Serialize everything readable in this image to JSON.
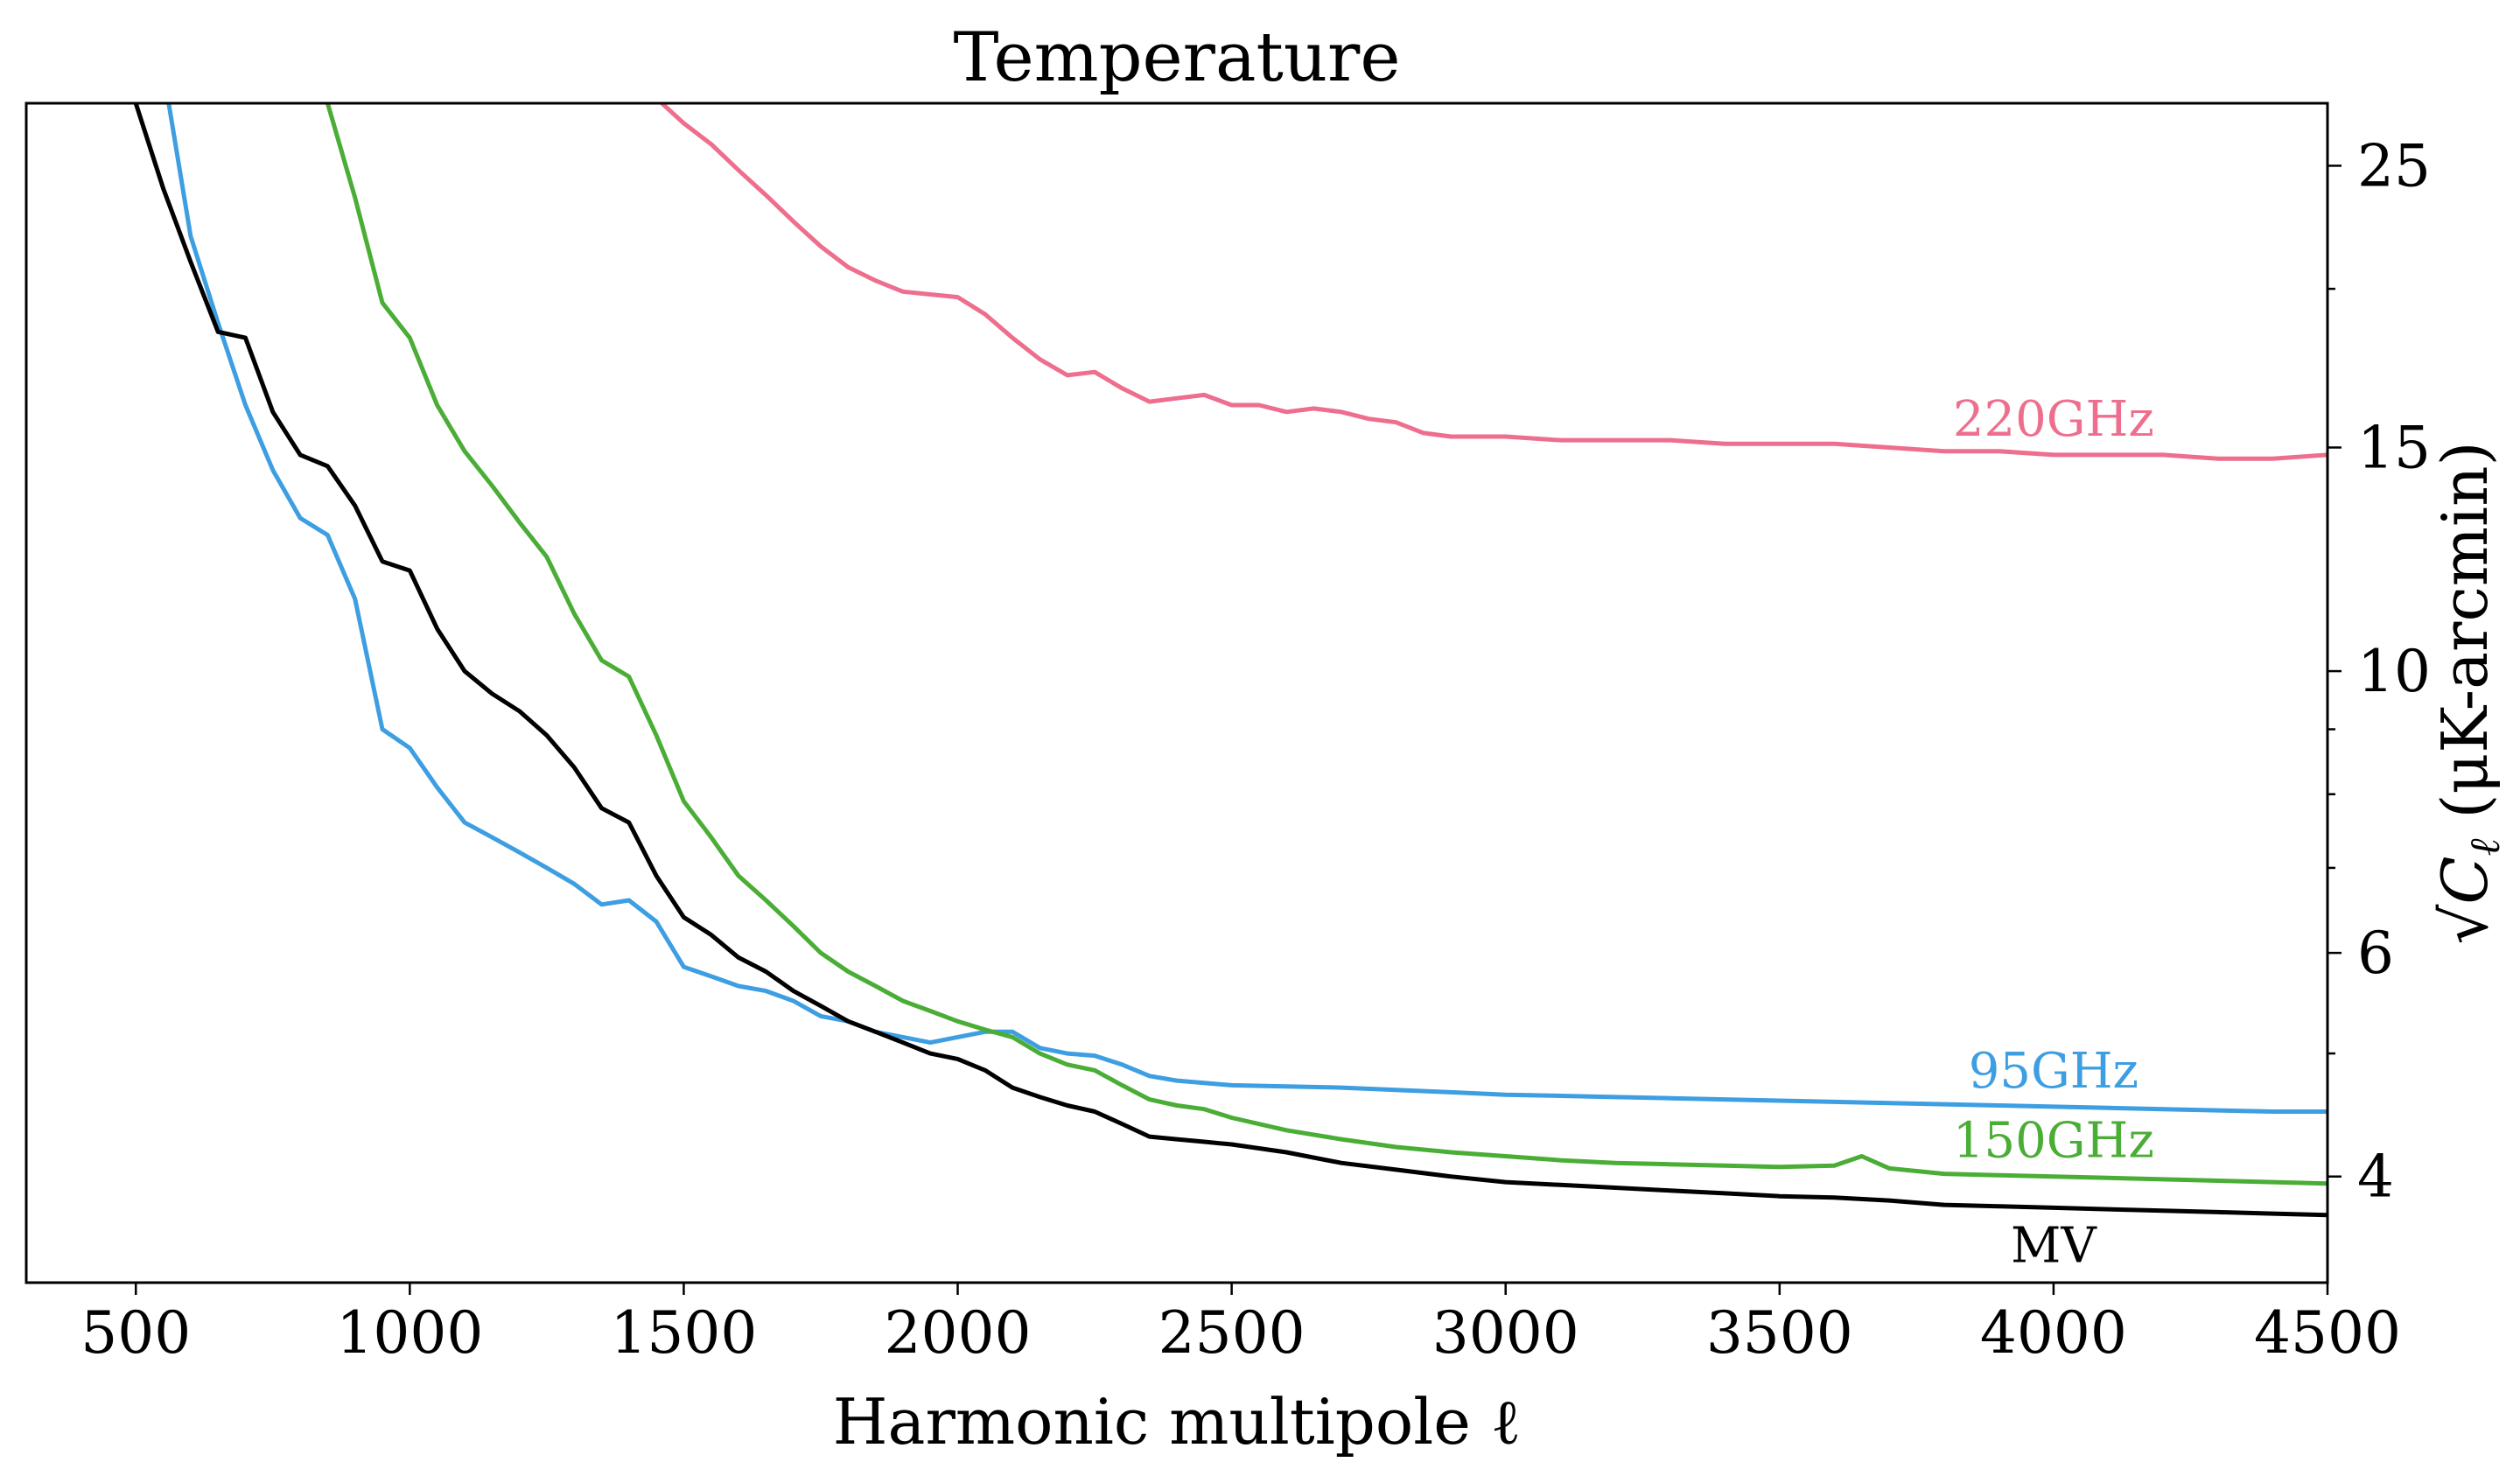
{
  "chart_data": {
    "type": "line",
    "title": "Temperature",
    "xlabel": "Harmonic multipole ℓ",
    "ylabel": "√C_ℓ (μK-arcmin)",
    "ylabel_parts": {
      "sqrt_symbol": "√",
      "base": "C",
      "subscript": "ℓ",
      "units": " (μK-arcmin)"
    },
    "xlim": [
      300,
      4500
    ],
    "ylim": [
      3.3,
      28.0
    ],
    "y_scale": "log",
    "y_axis_side": "right",
    "x_ticks": [
      500,
      1000,
      1500,
      2000,
      2500,
      3000,
      3500,
      4000,
      4500
    ],
    "x_tick_labels": [
      "500",
      "1000",
      "1500",
      "2000",
      "2500",
      "3000",
      "3500",
      "4000",
      "4500"
    ],
    "y_ticks_major": [
      4,
      6,
      10,
      15,
      25
    ],
    "y_tick_labels": [
      "4",
      "6",
      "10",
      "15",
      "25"
    ],
    "y_ticks_minor": [
      5,
      7,
      8,
      9,
      20
    ],
    "grid": false,
    "legend": "inline labels at right end of each curve",
    "series": [
      {
        "name": "220GHz",
        "color": "#ee6e8e",
        "x": [
          1460,
          1500,
          1550,
          1600,
          1650,
          1700,
          1750,
          1800,
          1850,
          1900,
          1950,
          2000,
          2050,
          2100,
          2150,
          2200,
          2250,
          2300,
          2350,
          2400,
          2450,
          2500,
          2550,
          2600,
          2650,
          2700,
          2750,
          2800,
          2850,
          2900,
          2950,
          3000,
          3100,
          3200,
          3300,
          3400,
          3500,
          3600,
          3700,
          3800,
          3900,
          4000,
          4100,
          4200,
          4300,
          4400,
          4500
        ],
        "y": [
          28.0,
          27.0,
          26.0,
          24.8,
          23.7,
          22.6,
          21.6,
          20.8,
          20.3,
          19.9,
          19.8,
          19.7,
          19.1,
          18.3,
          17.6,
          17.1,
          17.2,
          16.7,
          16.3,
          16.4,
          16.5,
          16.2,
          16.2,
          16.0,
          16.1,
          16.0,
          15.8,
          15.7,
          15.4,
          15.3,
          15.3,
          15.3,
          15.2,
          15.2,
          15.2,
          15.1,
          15.1,
          15.1,
          15.0,
          14.9,
          14.9,
          14.8,
          14.8,
          14.8,
          14.7,
          14.7,
          14.8
        ],
        "label_at": 4000
      },
      {
        "name": "95GHz",
        "color": "#3d9ee2",
        "x": [
          560,
          600,
          650,
          700,
          750,
          800,
          850,
          900,
          950,
          1000,
          1050,
          1100,
          1150,
          1200,
          1250,
          1300,
          1350,
          1400,
          1450,
          1500,
          1550,
          1600,
          1650,
          1700,
          1750,
          1800,
          1850,
          1900,
          1950,
          2000,
          2050,
          2100,
          2150,
          2200,
          2250,
          2300,
          2350,
          2400,
          2450,
          2500,
          2600,
          2700,
          2800,
          2900,
          3000,
          3100,
          3200,
          3300,
          3400,
          3500,
          3600,
          3700,
          3800,
          3900,
          4000,
          4100,
          4200,
          4300,
          4400,
          4500
        ],
        "y": [
          28.0,
          22.0,
          18.8,
          16.2,
          14.4,
          13.2,
          12.8,
          11.4,
          9.0,
          8.7,
          8.1,
          7.6,
          7.4,
          7.2,
          7.0,
          6.8,
          6.55,
          6.6,
          6.35,
          5.85,
          5.75,
          5.65,
          5.6,
          5.5,
          5.35,
          5.3,
          5.2,
          5.15,
          5.1,
          5.15,
          5.2,
          5.2,
          5.05,
          5.0,
          4.98,
          4.9,
          4.8,
          4.76,
          4.74,
          4.72,
          4.71,
          4.7,
          4.68,
          4.66,
          4.64,
          4.63,
          4.62,
          4.61,
          4.6,
          4.59,
          4.58,
          4.57,
          4.56,
          4.55,
          4.54,
          4.53,
          4.52,
          4.51,
          4.5,
          4.5
        ],
        "label_at": 4000
      },
      {
        "name": "150GHz",
        "color": "#4aad35",
        "x": [
          850,
          900,
          950,
          1000,
          1050,
          1100,
          1150,
          1200,
          1250,
          1300,
          1350,
          1400,
          1450,
          1500,
          1550,
          1600,
          1650,
          1700,
          1750,
          1800,
          1850,
          1900,
          1950,
          2000,
          2050,
          2100,
          2150,
          2200,
          2250,
          2300,
          2350,
          2400,
          2450,
          2500,
          2600,
          2700,
          2800,
          2900,
          3000,
          3100,
          3200,
          3300,
          3400,
          3500,
          3600,
          3650,
          3700,
          3800,
          3900,
          4000,
          4100,
          4200,
          4300,
          4400,
          4500
        ],
        "y": [
          28.0,
          23.6,
          19.5,
          18.3,
          16.2,
          14.9,
          14.0,
          13.1,
          12.3,
          11.1,
          10.2,
          9.9,
          8.9,
          7.9,
          7.4,
          6.9,
          6.6,
          6.3,
          6.0,
          5.8,
          5.65,
          5.5,
          5.4,
          5.3,
          5.22,
          5.15,
          5.0,
          4.9,
          4.85,
          4.72,
          4.6,
          4.55,
          4.52,
          4.45,
          4.35,
          4.28,
          4.22,
          4.18,
          4.15,
          4.12,
          4.1,
          4.09,
          4.08,
          4.07,
          4.08,
          4.15,
          4.06,
          4.02,
          4.01,
          4.0,
          3.99,
          3.98,
          3.97,
          3.96,
          3.95
        ],
        "label_at": 4000
      },
      {
        "name": "MV",
        "color": "#000000",
        "x": [
          500,
          550,
          600,
          650,
          700,
          750,
          800,
          850,
          900,
          950,
          1000,
          1050,
          1100,
          1150,
          1200,
          1250,
          1300,
          1350,
          1400,
          1450,
          1500,
          1550,
          1600,
          1650,
          1700,
          1750,
          1800,
          1850,
          1900,
          1950,
          2000,
          2050,
          2100,
          2150,
          2200,
          2250,
          2300,
          2350,
          2400,
          2450,
          2500,
          2600,
          2700,
          2800,
          2900,
          3000,
          3100,
          3200,
          3300,
          3400,
          3500,
          3600,
          3700,
          3800,
          3900,
          4000,
          4100,
          4200,
          4300,
          4400,
          4500
        ],
        "y": [
          28.0,
          24.0,
          21.0,
          18.5,
          18.3,
          16.0,
          14.8,
          14.5,
          13.5,
          12.2,
          12.0,
          10.8,
          10.0,
          9.6,
          9.3,
          8.9,
          8.4,
          7.8,
          7.6,
          6.9,
          6.4,
          6.2,
          5.95,
          5.8,
          5.6,
          5.45,
          5.3,
          5.2,
          5.1,
          5.0,
          4.95,
          4.85,
          4.7,
          4.62,
          4.55,
          4.5,
          4.4,
          4.3,
          4.28,
          4.26,
          4.24,
          4.18,
          4.1,
          4.05,
          4.0,
          3.96,
          3.94,
          3.92,
          3.9,
          3.88,
          3.86,
          3.85,
          3.83,
          3.8,
          3.79,
          3.78,
          3.77,
          3.76,
          3.75,
          3.74,
          3.73
        ],
        "label_at": 4000
      }
    ]
  }
}
